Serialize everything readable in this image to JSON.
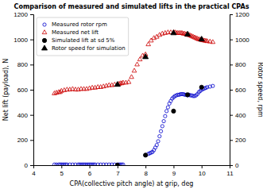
{
  "chart_data": {
    "type": "scatter",
    "title": "Comparison of measured and simulated lifts in the practical CPAs",
    "xlabel": "CPA(collective pitch angle) at grip, deg",
    "ylabel": "Net lift (payload), N",
    "y2label": "Rotor speed, rpm",
    "xlim": [
      4,
      11
    ],
    "ylim": [
      0,
      1200
    ],
    "y2lim": [
      0,
      1200
    ],
    "xticks": [
      4,
      5,
      6,
      7,
      8,
      9,
      10,
      11
    ],
    "yticks": [
      0,
      200,
      400,
      600,
      800,
      1000,
      1200
    ],
    "y2ticks": [
      0,
      200,
      400,
      600,
      800,
      1000,
      1200
    ],
    "legend": "upper left",
    "series": [
      {
        "name": "Measured rotor rpm",
        "color": "#0000cc",
        "marker": "circle-open",
        "x": [
          4.75,
          4.82,
          4.9,
          4.95,
          5.0,
          5.05,
          5.1,
          5.15,
          5.2,
          5.3,
          5.4,
          5.5,
          5.6,
          5.65,
          5.7,
          5.75,
          5.8,
          5.85,
          5.9,
          5.95,
          6.0,
          6.05,
          6.1,
          6.15,
          6.2,
          6.3,
          6.4,
          6.5,
          6.6,
          6.7,
          6.8,
          6.9,
          7.0,
          7.05,
          7.1,
          7.15,
          7.2,
          8.0,
          8.1,
          8.15,
          8.2,
          8.25,
          8.3,
          8.35,
          8.4,
          8.45,
          8.5,
          8.55,
          8.6,
          8.65,
          8.7,
          8.75,
          8.8,
          8.85,
          8.9,
          8.95,
          9.0,
          9.05,
          9.1,
          9.15,
          9.2,
          9.25,
          9.3,
          9.35,
          9.4,
          9.45,
          9.5,
          9.55,
          9.6,
          9.65,
          9.7,
          9.75,
          9.8,
          9.85,
          9.9,
          9.95,
          10.0,
          10.05,
          10.1,
          10.15,
          10.2,
          10.3,
          10.4
        ],
        "values": [
          5,
          5,
          5,
          5,
          5,
          5,
          5,
          5,
          5,
          5,
          5,
          5,
          5,
          5,
          5,
          5,
          5,
          5,
          5,
          5,
          5,
          5,
          5,
          5,
          5,
          5,
          5,
          5,
          5,
          5,
          5,
          5,
          5,
          5,
          5,
          5,
          5,
          80,
          90,
          95,
          100,
          105,
          120,
          140,
          160,
          190,
          230,
          270,
          310,
          350,
          390,
          430,
          460,
          490,
          510,
          530,
          540,
          550,
          555,
          560,
          560,
          565,
          565,
          565,
          560,
          560,
          555,
          560,
          555,
          555,
          550,
          550,
          555,
          565,
          580,
          590,
          600,
          605,
          610,
          615,
          620,
          625,
          630
        ]
      },
      {
        "name": "Measured net lift",
        "color": "#cc0000",
        "marker": "triangle-open",
        "x": [
          4.75,
          4.82,
          4.9,
          4.95,
          5.0,
          5.1,
          5.2,
          5.3,
          5.4,
          5.5,
          5.6,
          5.7,
          5.8,
          5.9,
          6.0,
          6.1,
          6.2,
          6.3,
          6.4,
          6.5,
          6.6,
          6.7,
          6.8,
          6.9,
          7.0,
          7.05,
          7.1,
          7.15,
          7.2,
          7.3,
          7.4,
          7.5,
          7.6,
          7.7,
          7.8,
          7.9,
          8.0,
          8.1,
          8.2,
          8.3,
          8.4,
          8.5,
          8.6,
          8.7,
          8.8,
          8.9,
          9.0,
          9.05,
          9.1,
          9.15,
          9.2,
          9.25,
          9.3,
          9.35,
          9.4,
          9.45,
          9.5,
          9.55,
          9.6,
          9.65,
          9.7,
          9.75,
          9.8,
          9.85,
          9.9,
          9.95,
          10.0,
          10.05,
          10.1,
          10.15,
          10.2,
          10.3,
          10.4
        ],
        "values": [
          570,
          575,
          580,
          580,
          590,
          595,
          600,
          600,
          605,
          600,
          600,
          605,
          605,
          605,
          610,
          615,
          615,
          620,
          620,
          625,
          630,
          635,
          635,
          640,
          640,
          645,
          650,
          650,
          655,
          655,
          660,
          700,
          750,
          800,
          840,
          870,
          880,
          960,
          990,
          1010,
          1020,
          1035,
          1045,
          1050,
          1055,
          1055,
          1055,
          1055,
          1050,
          1050,
          1050,
          1050,
          1050,
          1045,
          1045,
          1040,
          1035,
          1035,
          1030,
          1025,
          1020,
          1015,
          1010,
          1005,
          1000,
          998,
          995,
          992,
          990,
          988,
          985,
          982,
          978
        ]
      },
      {
        "name": "Simulated lift at sd 5%",
        "color": "#000000",
        "marker": "circle",
        "x": [
          7.0,
          8.0,
          9.0,
          9.5,
          10.0
        ],
        "values": [
          0,
          80,
          430,
          560,
          620
        ]
      },
      {
        "name": "Rotor speed for simulation",
        "color": "#000000",
        "marker": "triangle",
        "x": [
          7.0,
          8.0,
          9.0,
          9.5,
          10.0
        ],
        "values": [
          640,
          860,
          1050,
          1040,
          1000
        ]
      }
    ]
  }
}
